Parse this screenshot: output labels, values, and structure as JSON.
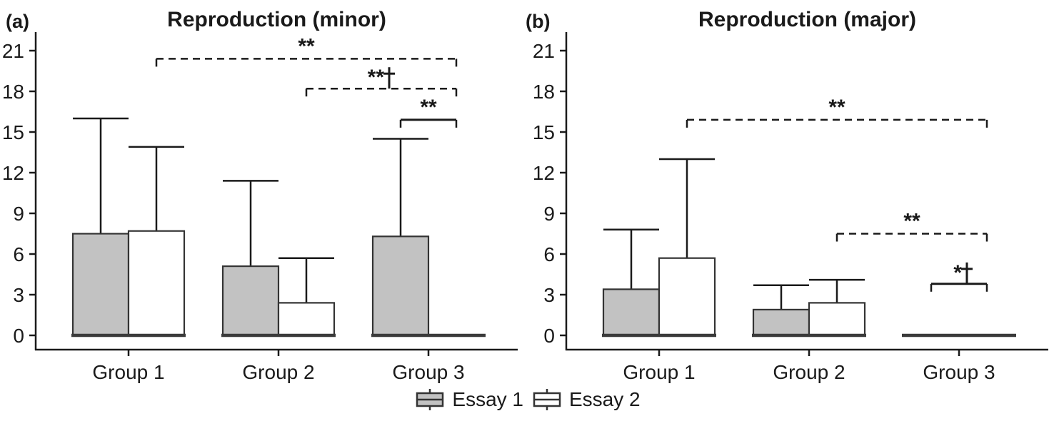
{
  "chart_data": [
    {
      "type": "bar",
      "panel_label": "(a)",
      "title": "Reproduction (minor)",
      "categories": [
        "Group 1",
        "Group 2",
        "Group 3"
      ],
      "xlabel": "",
      "ylabel": "",
      "yticks": [
        0,
        3,
        6,
        9,
        12,
        15,
        18,
        21
      ],
      "ylim": [
        0,
        22.4
      ],
      "grid": "off",
      "series": [
        {
          "name": "Essay 1",
          "fill": "#c2c2c2",
          "values": [
            7.5,
            5.1,
            7.3
          ],
          "error_upper": [
            16.0,
            11.4,
            14.5
          ]
        },
        {
          "name": "Essay 2",
          "fill": "#ffffff",
          "values": [
            7.7,
            2.4,
            0
          ],
          "error_upper": [
            13.9,
            5.7,
            null
          ]
        }
      ],
      "significance_brackets": [
        {
          "from_group": 0,
          "from_series": 1,
          "to_group": 2,
          "to_series": 1,
          "y": 20.4,
          "line": "dashed",
          "label": "**"
        },
        {
          "from_group": 1,
          "from_series": 1,
          "to_group": 2,
          "to_series": 1,
          "y": 18.2,
          "line": "dashed",
          "label": "**†"
        },
        {
          "from_group": 2,
          "from_series": 0,
          "to_group": 2,
          "to_series": 1,
          "y": 15.9,
          "line": "solid",
          "label": "**"
        }
      ]
    },
    {
      "type": "bar",
      "panel_label": "(b)",
      "title": "Reproduction (major)",
      "categories": [
        "Group 1",
        "Group 2",
        "Group 3"
      ],
      "xlabel": "",
      "ylabel": "",
      "yticks": [
        0,
        3,
        6,
        9,
        12,
        15,
        18,
        21
      ],
      "ylim": [
        0,
        22.4
      ],
      "grid": "off",
      "series": [
        {
          "name": "Essay 1",
          "fill": "#c2c2c2",
          "values": [
            3.4,
            1.9,
            0
          ],
          "error_upper": [
            7.8,
            3.7,
            null
          ]
        },
        {
          "name": "Essay 2",
          "fill": "#ffffff",
          "values": [
            5.7,
            2.4,
            0
          ],
          "error_upper": [
            13.0,
            4.1,
            null
          ]
        }
      ],
      "significance_brackets": [
        {
          "from_group": 0,
          "from_series": 1,
          "to_group": 2,
          "to_series": 1,
          "y": 15.9,
          "line": "dashed",
          "label": "**"
        },
        {
          "from_group": 1,
          "from_series": 1,
          "to_group": 2,
          "to_series": 1,
          "y": 7.5,
          "line": "dashed",
          "label": "**"
        },
        {
          "from_group": 2,
          "from_series": 0,
          "to_group": 2,
          "to_series": 1,
          "y": 3.8,
          "line": "solid",
          "label": "*†"
        }
      ]
    }
  ],
  "legend": {
    "items": [
      {
        "label": "Essay 1",
        "fill": "#c2c2c2"
      },
      {
        "label": "Essay 2",
        "fill": "#ffffff"
      }
    ]
  },
  "colors": {
    "bar_border": "#333333",
    "axis": "#1a1a1a",
    "baseline": "#3a3a3a",
    "text": "#1a1a1a"
  }
}
